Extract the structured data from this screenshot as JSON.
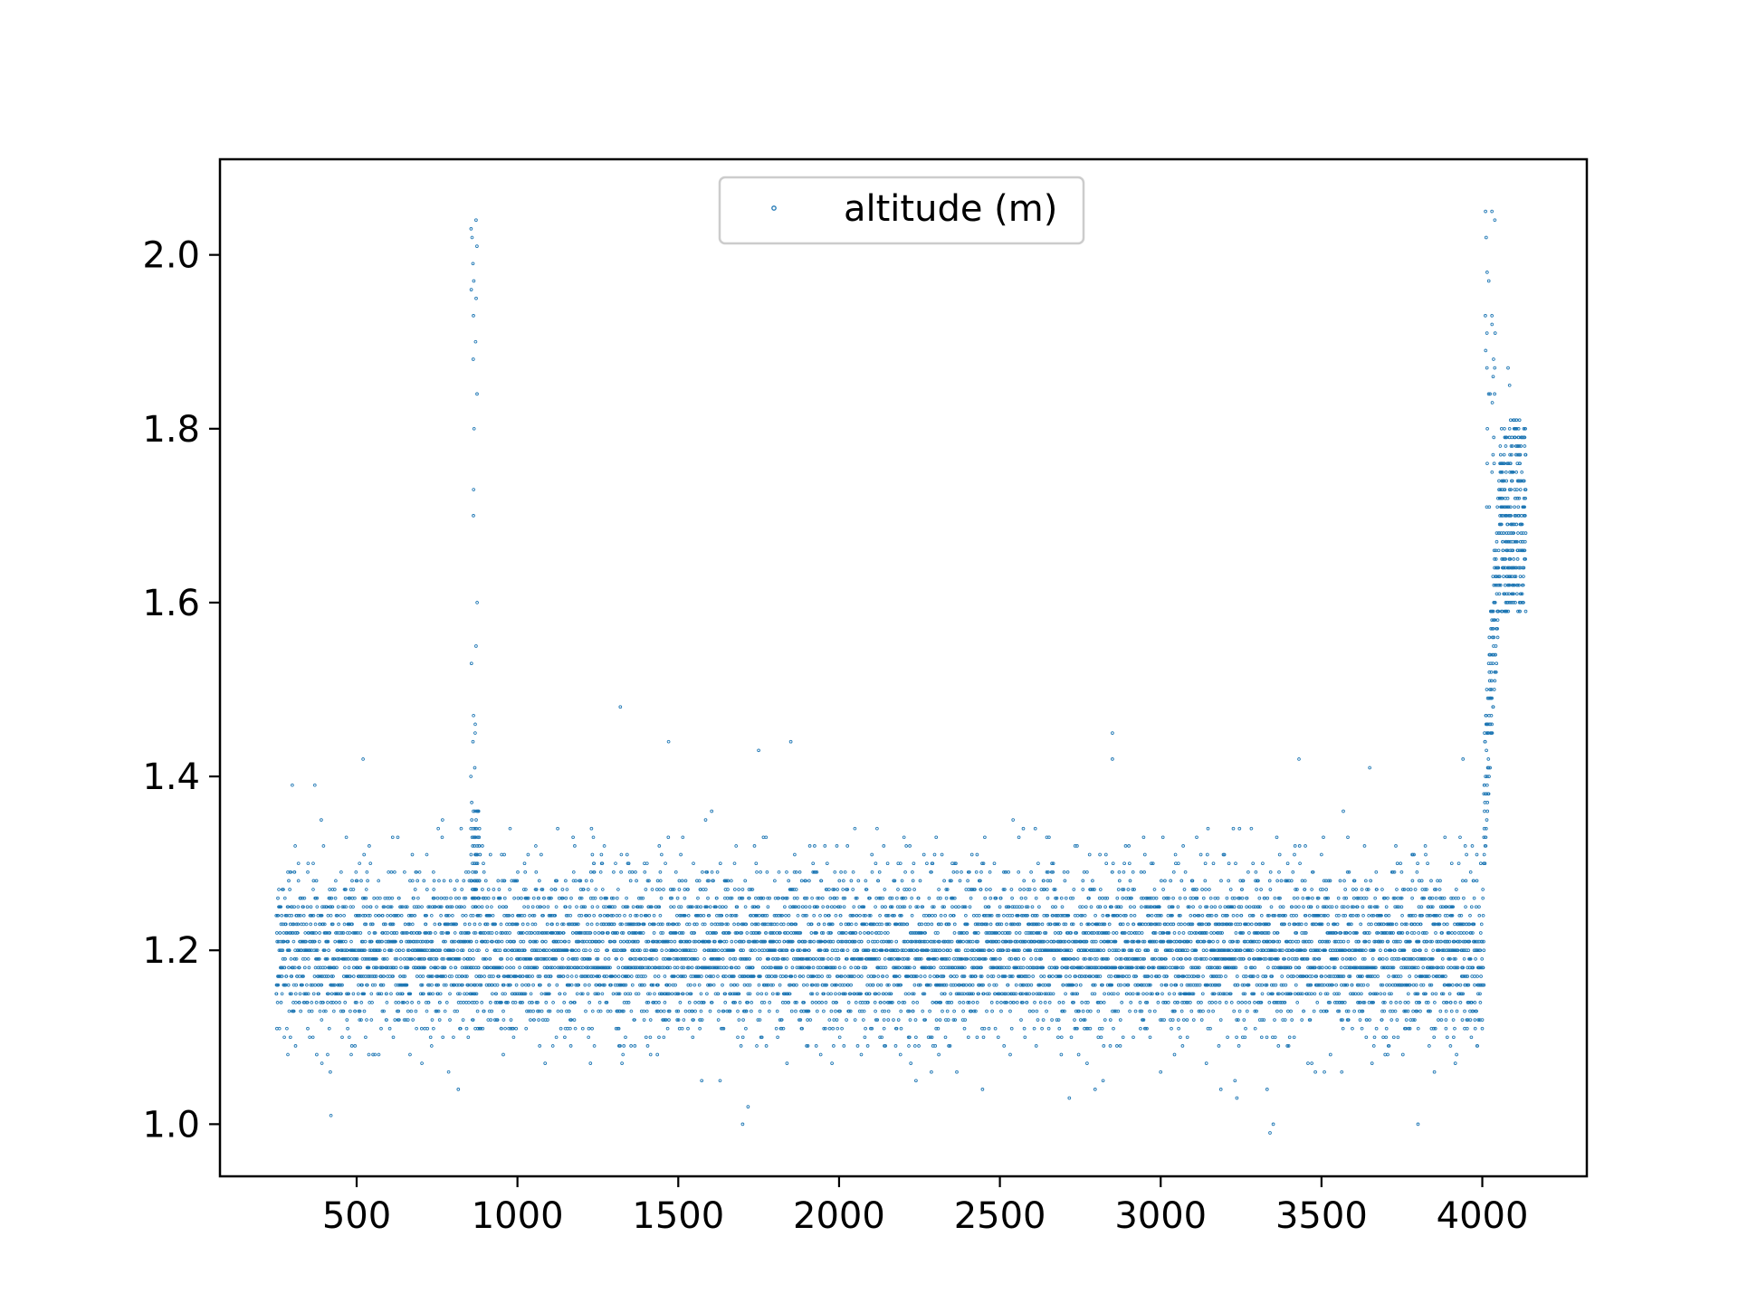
{
  "chart_data": {
    "type": "scatter",
    "series": [
      {
        "name": "altitude (m)",
        "color": "#1f77b4",
        "marker": "small-circle"
      }
    ],
    "x_range": [
      250,
      4140
    ],
    "xlim": [
      75,
      4325
    ],
    "ylim": [
      0.94,
      2.11
    ],
    "xticks": [
      500,
      1000,
      1500,
      2000,
      2500,
      3000,
      3500,
      4000
    ],
    "yticks": [
      1.0,
      1.2,
      1.4,
      1.6,
      1.8,
      2.0
    ],
    "xtick_labels": [
      "500",
      "1000",
      "1500",
      "2000",
      "2500",
      "3000",
      "3500",
      "4000"
    ],
    "ytick_labels": [
      "1.0",
      "1.2",
      "1.4",
      "1.6",
      "1.8",
      "2.0"
    ],
    "value_resolution": 0.01,
    "main_band": {
      "y_min": 1.06,
      "y_max": 1.31,
      "center": 1.2
    },
    "spike_near_x_860": {
      "x_range": [
        855,
        875
      ],
      "y_values": [
        2.04,
        2.03,
        2.02,
        2.01,
        1.99,
        1.97,
        1.96,
        1.95,
        1.93,
        1.9,
        1.88,
        1.84,
        1.8,
        1.73,
        1.7,
        1.6,
        1.55,
        1.53,
        1.47,
        1.46,
        1.45,
        1.44,
        1.41,
        1.4
      ]
    },
    "rise_near_x_4000": {
      "x_range": [
        4005,
        4135
      ],
      "y_start": 1.33,
      "y_peak": 2.05,
      "upper_band": [
        1.51,
        1.81
      ]
    },
    "isolated_points": [
      {
        "x": 300,
        "y": 1.39
      },
      {
        "x": 370,
        "y": 1.39
      },
      {
        "x": 520,
        "y": 1.42
      },
      {
        "x": 420,
        "y": 1.01
      },
      {
        "x": 1320,
        "y": 1.48
      },
      {
        "x": 1470,
        "y": 1.44
      },
      {
        "x": 1700,
        "y": 1.0
      },
      {
        "x": 1750,
        "y": 1.43
      },
      {
        "x": 1850,
        "y": 1.44
      },
      {
        "x": 2850,
        "y": 1.45
      },
      {
        "x": 2850,
        "y": 1.42
      },
      {
        "x": 3340,
        "y": 0.99
      },
      {
        "x": 3350,
        "y": 1.0
      },
      {
        "x": 3430,
        "y": 1.42
      },
      {
        "x": 3650,
        "y": 1.41
      },
      {
        "x": 3800,
        "y": 1.0
      },
      {
        "x": 3940,
        "y": 1.42
      }
    ],
    "legend": {
      "placement": "upper center",
      "label": "altitude (m)"
    },
    "title": "",
    "xlabel": "",
    "ylabel": "",
    "grid": false
  }
}
